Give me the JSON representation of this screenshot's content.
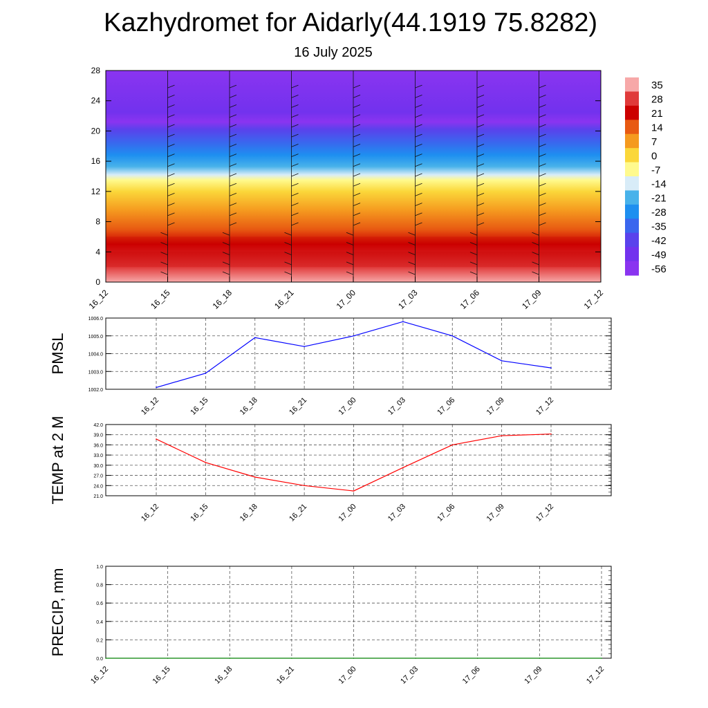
{
  "header": {
    "title": "Kazhydromet for Aidarly(44.1919 75.8282)",
    "subtitle": "16 July 2025"
  },
  "colors": {
    "pmsl_line": "#0000ff",
    "temp_line": "#ff0000",
    "precip_line": "#008000",
    "grid": "#555555"
  },
  "chart_data": [
    {
      "type": "heatmap",
      "name_hint": "upper-air-temperature",
      "x_ticks": [
        "16_12",
        "16_15",
        "16_18",
        "16_21",
        "17_00",
        "17_03",
        "17_06",
        "17_09",
        "17_12"
      ],
      "y_ticks": [
        "0",
        "4",
        "8",
        "12",
        "16",
        "20",
        "24",
        "28"
      ],
      "ylim": [
        0,
        28
      ],
      "colorbar": {
        "labels": [
          "35",
          "28",
          "21",
          "14",
          "7",
          "0",
          "-7",
          "-14",
          "-21",
          "-28",
          "-35",
          "-42",
          "-49",
          "-56"
        ],
        "colors": [
          "#f7a8a8",
          "#e03a3a",
          "#cc0000",
          "#e85a12",
          "#f59a1f",
          "#fbd73a",
          "#fffa8e",
          "#d8ecf8",
          "#48b2ea",
          "#1e8ff0",
          "#3a66ee",
          "#5a42ec",
          "#7232ee",
          "#8a34f0"
        ]
      },
      "temperature_profile": [
        {
          "level": 0,
          "value": 35
        },
        {
          "level": 2,
          "value": 28
        },
        {
          "level": 5,
          "value": 21
        },
        {
          "level": 7,
          "value": 14
        },
        {
          "level": 9.5,
          "value": 7
        },
        {
          "level": 12,
          "value": 0
        },
        {
          "level": 13.5,
          "value": -7
        },
        {
          "level": 14.2,
          "value": -14
        },
        {
          "level": 15.3,
          "value": -21
        },
        {
          "level": 16.8,
          "value": -28
        },
        {
          "level": 18.5,
          "value": -35
        },
        {
          "level": 20.2,
          "value": -42
        },
        {
          "level": 21.2,
          "value": -56
        },
        {
          "level": 22.5,
          "value": -49
        },
        {
          "level": 28,
          "value": -56
        }
      ]
    },
    {
      "type": "line",
      "ylabel": "PMSL",
      "categories": [
        "16_12",
        "16_15",
        "16_18",
        "16_21",
        "17_00",
        "17_03",
        "17_06",
        "17_09",
        "17_12"
      ],
      "y_ticks": [
        "1002.0",
        "1003.0",
        "1004.0",
        "1005.0",
        "1006.0"
      ],
      "ylim": [
        1002,
        1006
      ],
      "grid": true,
      "series": [
        {
          "values": [
            1002.1,
            1002.9,
            1004.9,
            1004.4,
            1005.0,
            1005.8,
            1005.0,
            1003.6,
            1003.2
          ]
        }
      ]
    },
    {
      "type": "line",
      "ylabel": "TEMP at 2 M",
      "categories": [
        "16_12",
        "16_15",
        "16_18",
        "16_21",
        "17_00",
        "17_03",
        "17_06",
        "17_09",
        "17_12"
      ],
      "y_ticks": [
        "21.0",
        "24.0",
        "27.0",
        "30.0",
        "33.0",
        "36.0",
        "39.0",
        "42.0"
      ],
      "ylim": [
        21,
        42
      ],
      "grid": true,
      "series": [
        {
          "values": [
            37.7,
            30.8,
            26.5,
            24.0,
            22.4,
            29.3,
            36.0,
            38.7,
            39.2
          ]
        }
      ]
    },
    {
      "type": "line",
      "ylabel": "PRECIP, mm",
      "categories": [
        "16_12",
        "16_15",
        "16_18",
        "16_21",
        "17_00",
        "17_03",
        "17_06",
        "17_09",
        "17_12"
      ],
      "y_ticks": [
        "0.0",
        "0.2",
        "0.4",
        "0.6",
        "0.8",
        "1.0"
      ],
      "ylim": [
        0,
        1
      ],
      "grid": true,
      "series": [
        {
          "values": [
            0,
            0,
            0,
            0,
            0,
            0,
            0,
            0,
            0
          ]
        }
      ]
    }
  ]
}
